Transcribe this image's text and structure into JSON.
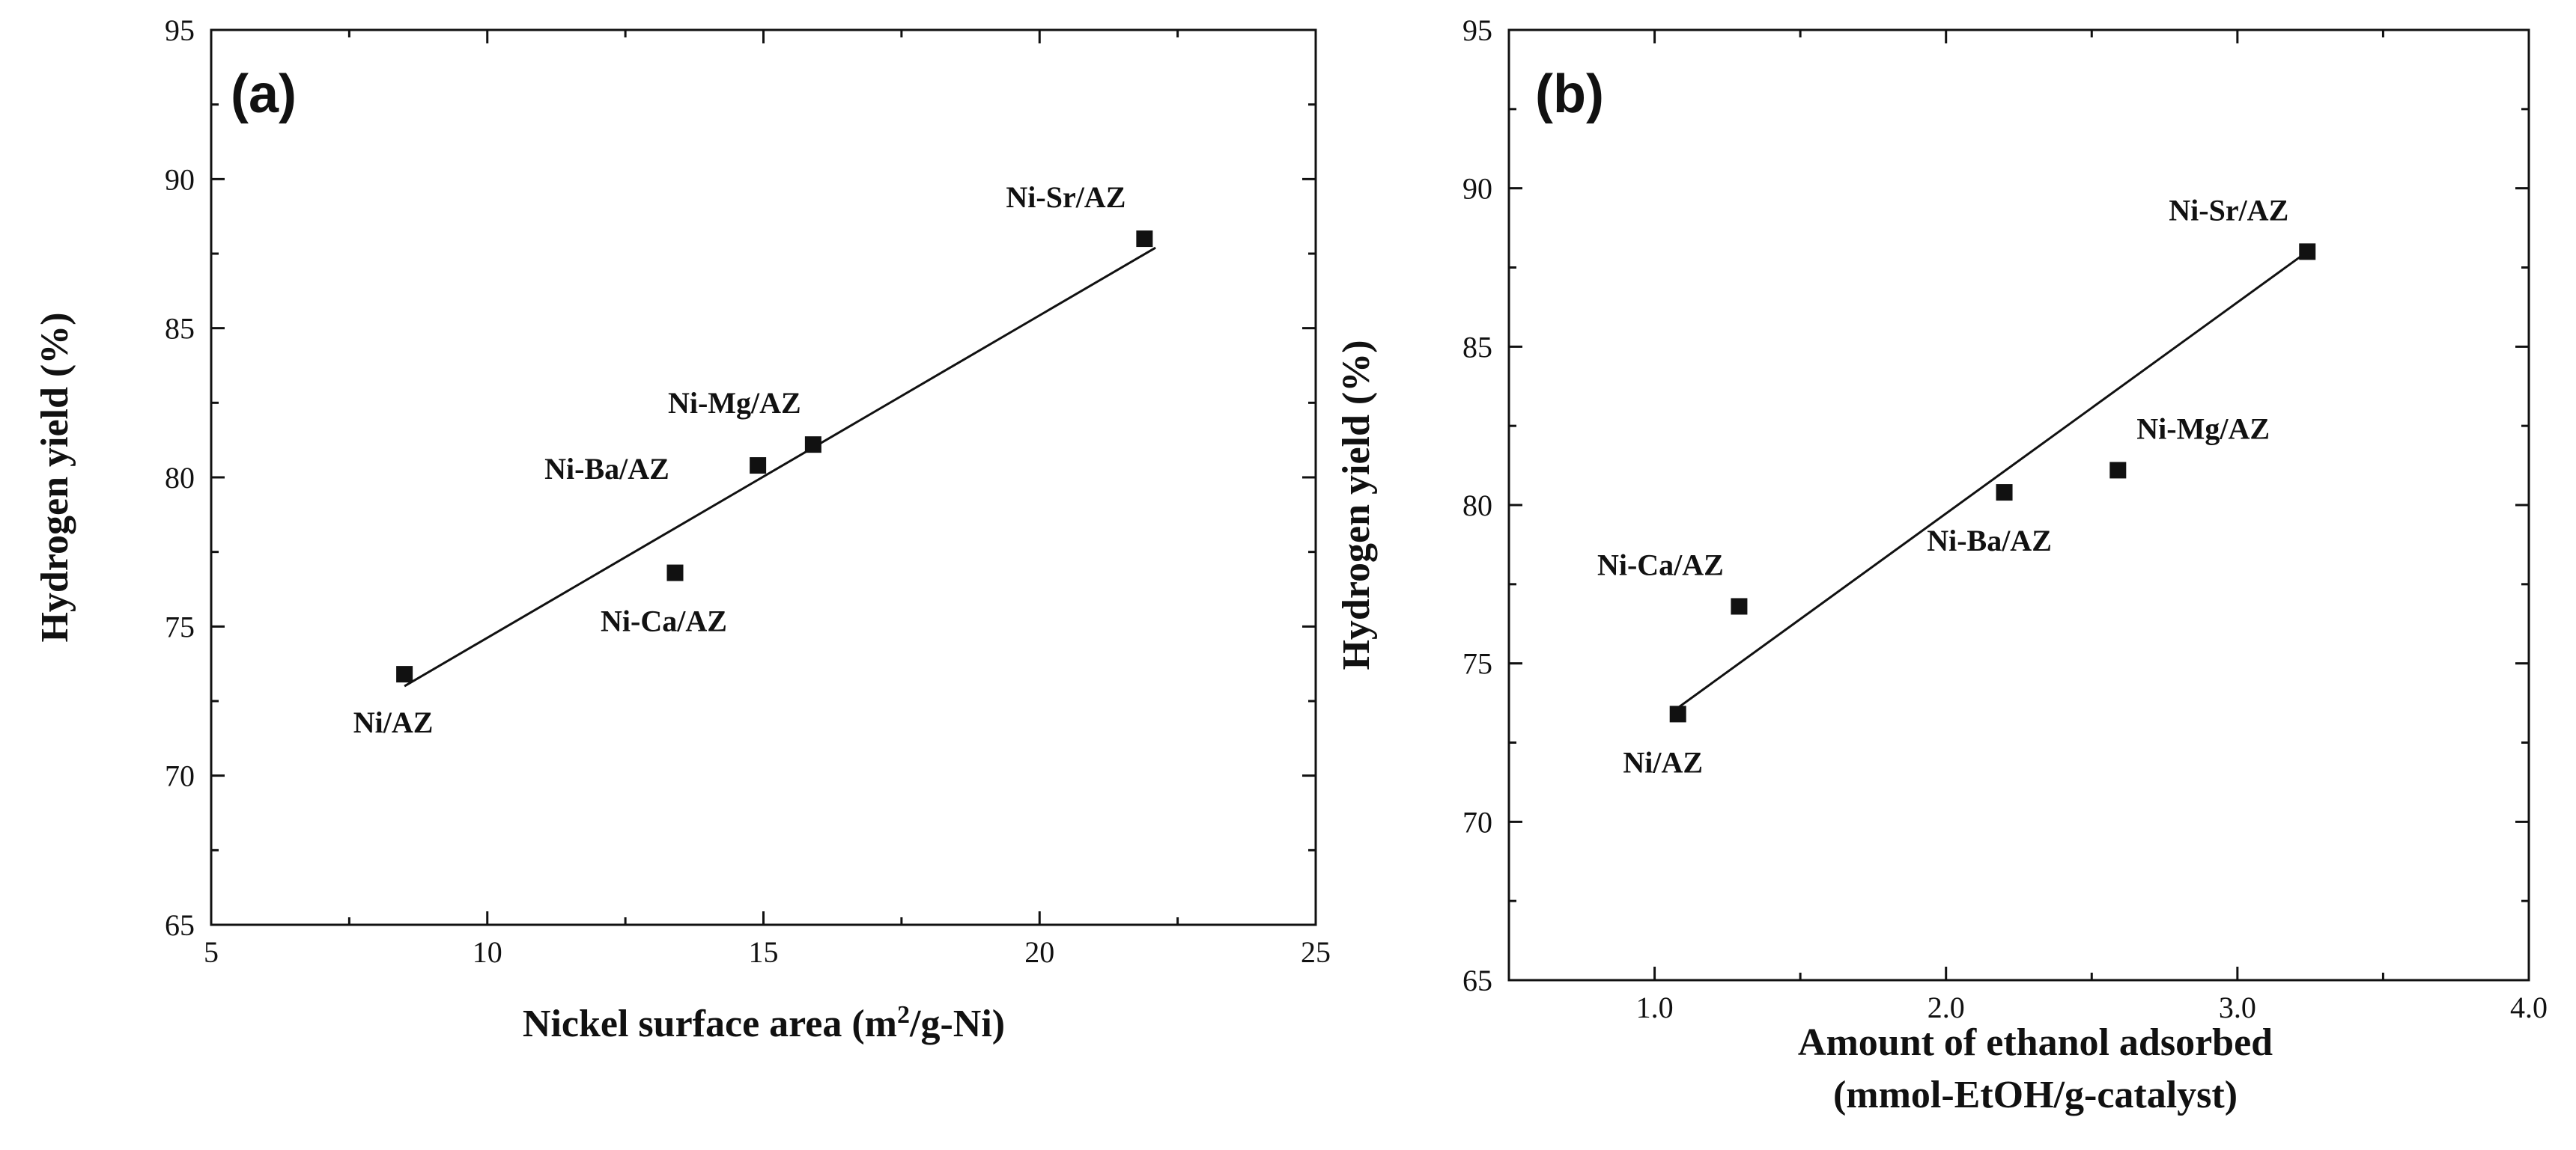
{
  "chart_data": [
    {
      "type": "scatter",
      "panel_label": "(a)",
      "xlabel": "Nickel surface area (m",
      "xlabel_sup": "2",
      "xlabel_tail": "/g-Ni)",
      "ylabel": "Hydrogen yield (%)",
      "xlim": [
        5,
        25
      ],
      "ylim": [
        65,
        95
      ],
      "xticks": [
        5,
        10,
        15,
        20,
        25
      ],
      "xtick_labels": [
        "5",
        "10",
        "15",
        "20",
        "25"
      ],
      "yticks": [
        65,
        70,
        75,
        80,
        85,
        90,
        95
      ],
      "ytick_labels": [
        "65",
        "70",
        "75",
        "80",
        "85",
        "90",
        "95"
      ],
      "points": [
        {
          "label": "Ni/AZ",
          "x": 8.5,
          "y": 73.4,
          "label_pos": "below"
        },
        {
          "label": "Ni-Ca/AZ",
          "x": 13.4,
          "y": 76.8,
          "label_pos": "below"
        },
        {
          "label": "Ni-Ba/AZ",
          "x": 14.9,
          "y": 80.4,
          "label_pos": "left"
        },
        {
          "label": "Ni-Mg/AZ",
          "x": 15.9,
          "y": 81.1,
          "label_pos": "above"
        },
        {
          "label": "Ni-Sr/AZ",
          "x": 21.9,
          "y": 88.0,
          "label_pos": "above"
        }
      ],
      "fit_line": {
        "x": [
          8.5,
          22.1
        ],
        "y": [
          73.0,
          87.7
        ]
      }
    },
    {
      "type": "scatter",
      "panel_label": "(b)",
      "xlabel": "Amount of ethanol adsorbed",
      "xlabel_line2": "(mmol-EtOH/g-catalyst)",
      "ylabel": "Hydrogen yield (%)",
      "xlim": [
        0.5,
        4.0
      ],
      "ylim": [
        65,
        95
      ],
      "xticks": [
        1.0,
        2.0,
        3.0,
        4.0
      ],
      "xtick_labels": [
        "1.0",
        "2.0",
        "3.0",
        "4.0"
      ],
      "yticks": [
        65,
        70,
        75,
        80,
        85,
        90,
        95
      ],
      "ytick_labels": [
        "65",
        "70",
        "75",
        "80",
        "85",
        "90",
        "95"
      ],
      "points": [
        {
          "label": "Ni/AZ",
          "x": 1.08,
          "y": 73.4,
          "label_pos": "below"
        },
        {
          "label": "Ni-Ca/AZ",
          "x": 1.29,
          "y": 76.8,
          "label_pos": "above"
        },
        {
          "label": "Ni-Ba/AZ",
          "x": 2.2,
          "y": 80.4,
          "label_pos": "below"
        },
        {
          "label": "Ni-Mg/AZ",
          "x": 2.59,
          "y": 81.1,
          "label_pos": "above-right"
        },
        {
          "label": "Ni-Sr/AZ",
          "x": 3.24,
          "y": 88.0,
          "label_pos": "above"
        }
      ],
      "fit_line": {
        "x": [
          1.08,
          3.24
        ],
        "y": [
          73.6,
          88.0
        ]
      }
    }
  ]
}
